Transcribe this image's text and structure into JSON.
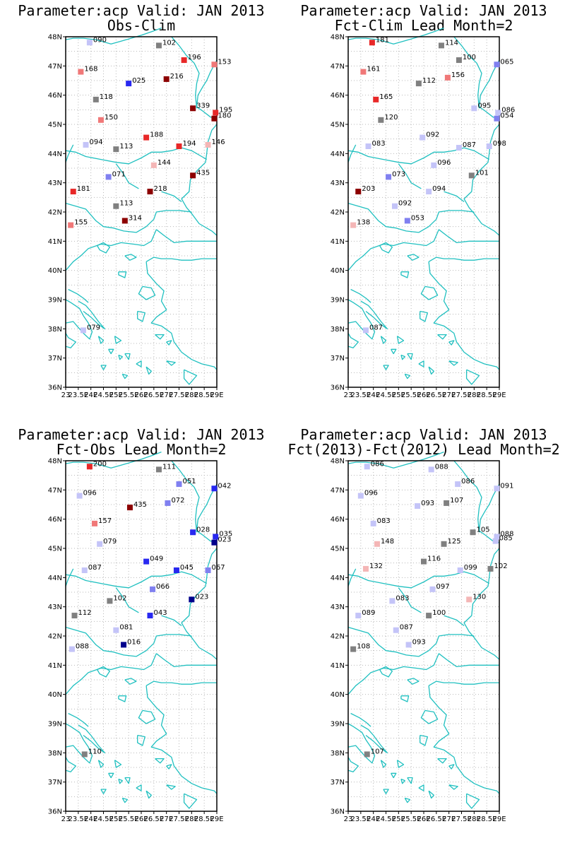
{
  "colors": {
    "coast": "#20c0c0",
    "grid": "#b8b8b8",
    "frame": "#000000",
    "neutral": "#808080",
    "pos_scale": [
      "#f4b6b6",
      "#f07878",
      "#e82828",
      "#8c0000"
    ],
    "neg_scale": [
      "#c4c4f8",
      "#8080f0",
      "#2828f0",
      "#00008c"
    ]
  },
  "axes": {
    "lon_range": [
      23,
      29
    ],
    "lat_range": [
      36,
      48
    ],
    "y_tick_labels": [
      "48N",
      "47N",
      "46N",
      "45N",
      "44N",
      "43N",
      "42N",
      "41N",
      "40N",
      "39N",
      "38N",
      "37N",
      "36N"
    ],
    "x_tick_labels": [
      "23",
      "23.5E",
      "24E",
      "24.5E",
      "25E",
      "25.5E",
      "26E",
      "26.5E",
      "27E",
      "27.5E",
      "28E",
      "28.5E",
      "29E"
    ],
    "grid": true
  },
  "panels": [
    {
      "title_line1": "Parameter:acp Valid: JAN 2013",
      "title_line2": "Obs-Clim",
      "stations": [
        {
          "lon": 23.95,
          "lat": 47.8,
          "label": "090",
          "class": "n1"
        },
        {
          "lon": 26.7,
          "lat": 47.7,
          "label": "102",
          "class": "z"
        },
        {
          "lon": 27.7,
          "lat": 47.2,
          "label": "196",
          "class": "p3"
        },
        {
          "lon": 28.9,
          "lat": 47.05,
          "label": "153",
          "class": "p2"
        },
        {
          "lon": 23.6,
          "lat": 46.8,
          "label": "168",
          "class": "p2"
        },
        {
          "lon": 25.5,
          "lat": 46.4,
          "label": "025",
          "class": "n3"
        },
        {
          "lon": 27.0,
          "lat": 46.55,
          "label": "216",
          "class": "p4"
        },
        {
          "lon": 24.2,
          "lat": 45.85,
          "label": "118",
          "class": "z"
        },
        {
          "lon": 28.05,
          "lat": 45.55,
          "label": "339",
          "class": "p4"
        },
        {
          "lon": 28.95,
          "lat": 45.4,
          "label": "195",
          "class": "p3"
        },
        {
          "lon": 28.9,
          "lat": 45.2,
          "label": "180",
          "class": "p4"
        },
        {
          "lon": 24.4,
          "lat": 45.15,
          "label": "150",
          "class": "p2"
        },
        {
          "lon": 26.2,
          "lat": 44.55,
          "label": "188",
          "class": "p3"
        },
        {
          "lon": 23.8,
          "lat": 44.3,
          "label": "094",
          "class": "n1"
        },
        {
          "lon": 25.0,
          "lat": 44.15,
          "label": "113",
          "class": "z"
        },
        {
          "lon": 27.5,
          "lat": 44.25,
          "label": "194",
          "class": "p3"
        },
        {
          "lon": 28.65,
          "lat": 44.3,
          "label": "146",
          "class": "p1"
        },
        {
          "lon": 26.5,
          "lat": 43.6,
          "label": "144",
          "class": "p1"
        },
        {
          "lon": 24.7,
          "lat": 43.2,
          "label": "071",
          "class": "n2"
        },
        {
          "lon": 28.05,
          "lat": 43.25,
          "label": "435",
          "class": "p4"
        },
        {
          "lon": 23.3,
          "lat": 42.7,
          "label": "181",
          "class": "p3"
        },
        {
          "lon": 26.35,
          "lat": 42.7,
          "label": "218",
          "class": "p4"
        },
        {
          "lon": 25.0,
          "lat": 42.2,
          "label": "113",
          "class": "z"
        },
        {
          "lon": 25.35,
          "lat": 41.7,
          "label": "314",
          "class": "p4"
        },
        {
          "lon": 23.2,
          "lat": 41.55,
          "label": "155",
          "class": "p2"
        },
        {
          "lon": 23.7,
          "lat": 37.95,
          "label": "079",
          "class": "n1"
        }
      ]
    },
    {
      "title_line1": "Parameter:acp Valid: JAN 2013",
      "title_line2": "Fct-Clim Lead Month=2",
      "stations": [
        {
          "lon": 23.95,
          "lat": 47.8,
          "label": "181",
          "class": "p3"
        },
        {
          "lon": 26.7,
          "lat": 47.7,
          "label": "114",
          "class": "z"
        },
        {
          "lon": 27.4,
          "lat": 47.2,
          "label": "100",
          "class": "z"
        },
        {
          "lon": 28.9,
          "lat": 47.05,
          "label": "065",
          "class": "n2"
        },
        {
          "lon": 23.6,
          "lat": 46.8,
          "label": "161",
          "class": "p2"
        },
        {
          "lon": 25.8,
          "lat": 46.4,
          "label": "112",
          "class": "z"
        },
        {
          "lon": 26.95,
          "lat": 46.6,
          "label": "156",
          "class": "p2"
        },
        {
          "lon": 24.1,
          "lat": 45.85,
          "label": "165",
          "class": "p3"
        },
        {
          "lon": 28.0,
          "lat": 45.55,
          "label": "095",
          "class": "n1"
        },
        {
          "lon": 28.95,
          "lat": 45.4,
          "label": "086",
          "class": "n1"
        },
        {
          "lon": 28.9,
          "lat": 45.2,
          "label": "054",
          "class": "n2"
        },
        {
          "lon": 24.3,
          "lat": 45.15,
          "label": "120",
          "class": "z"
        },
        {
          "lon": 25.95,
          "lat": 44.55,
          "label": "092",
          "class": "n1"
        },
        {
          "lon": 23.8,
          "lat": 44.25,
          "label": "083",
          "class": "n1"
        },
        {
          "lon": 27.4,
          "lat": 44.2,
          "label": "087",
          "class": "n1"
        },
        {
          "lon": 28.6,
          "lat": 44.25,
          "label": "098",
          "class": "n1"
        },
        {
          "lon": 26.4,
          "lat": 43.6,
          "label": "096",
          "class": "n1"
        },
        {
          "lon": 24.6,
          "lat": 43.2,
          "label": "073",
          "class": "n2"
        },
        {
          "lon": 27.9,
          "lat": 43.25,
          "label": "101",
          "class": "z"
        },
        {
          "lon": 23.4,
          "lat": 42.7,
          "label": "203",
          "class": "p4"
        },
        {
          "lon": 26.2,
          "lat": 42.7,
          "label": "094",
          "class": "n1"
        },
        {
          "lon": 24.85,
          "lat": 42.2,
          "label": "092",
          "class": "n1"
        },
        {
          "lon": 25.35,
          "lat": 41.7,
          "label": "053",
          "class": "n2"
        },
        {
          "lon": 23.2,
          "lat": 41.55,
          "label": "138",
          "class": "p1"
        },
        {
          "lon": 23.7,
          "lat": 37.95,
          "label": "087",
          "class": "n1"
        }
      ]
    },
    {
      "title_line1": "Parameter:acp Valid: JAN 2013",
      "title_line2": "Fct-Obs Lead Month=2",
      "stations": [
        {
          "lon": 23.95,
          "lat": 47.8,
          "label": "200",
          "class": "p3"
        },
        {
          "lon": 26.7,
          "lat": 47.7,
          "label": "111",
          "class": "z"
        },
        {
          "lon": 27.5,
          "lat": 47.2,
          "label": "051",
          "class": "n2"
        },
        {
          "lon": 28.9,
          "lat": 47.05,
          "label": "042",
          "class": "n3"
        },
        {
          "lon": 23.55,
          "lat": 46.8,
          "label": "096",
          "class": "n1"
        },
        {
          "lon": 25.55,
          "lat": 46.4,
          "label": "435",
          "class": "p4"
        },
        {
          "lon": 27.05,
          "lat": 46.55,
          "label": "072",
          "class": "n2"
        },
        {
          "lon": 24.15,
          "lat": 45.85,
          "label": "157",
          "class": "p2"
        },
        {
          "lon": 28.05,
          "lat": 45.55,
          "label": "028",
          "class": "n3"
        },
        {
          "lon": 28.95,
          "lat": 45.4,
          "label": "035",
          "class": "n3"
        },
        {
          "lon": 28.9,
          "lat": 45.2,
          "label": "023",
          "class": "n4"
        },
        {
          "lon": 24.35,
          "lat": 45.15,
          "label": "079",
          "class": "n1"
        },
        {
          "lon": 26.2,
          "lat": 44.55,
          "label": "049",
          "class": "n3"
        },
        {
          "lon": 23.75,
          "lat": 44.25,
          "label": "087",
          "class": "n1"
        },
        {
          "lon": 27.4,
          "lat": 44.25,
          "label": "045",
          "class": "n3"
        },
        {
          "lon": 28.65,
          "lat": 44.25,
          "label": "067",
          "class": "n2"
        },
        {
          "lon": 26.45,
          "lat": 43.6,
          "label": "066",
          "class": "n2"
        },
        {
          "lon": 24.75,
          "lat": 43.2,
          "label": "102",
          "class": "z"
        },
        {
          "lon": 28.0,
          "lat": 43.25,
          "label": "023",
          "class": "n4"
        },
        {
          "lon": 23.35,
          "lat": 42.7,
          "label": "112",
          "class": "z"
        },
        {
          "lon": 26.35,
          "lat": 42.7,
          "label": "043",
          "class": "n3"
        },
        {
          "lon": 25.0,
          "lat": 42.2,
          "label": "081",
          "class": "n1"
        },
        {
          "lon": 25.3,
          "lat": 41.7,
          "label": "016",
          "class": "n4"
        },
        {
          "lon": 23.25,
          "lat": 41.55,
          "label": "088",
          "class": "n1"
        },
        {
          "lon": 23.75,
          "lat": 37.95,
          "label": "110",
          "class": "z"
        }
      ]
    },
    {
      "title_line1": "Parameter:acp Valid: JAN 2013",
      "title_line2": "Fct(2013)-Fct(2012) Lead Month=2",
      "stations": [
        {
          "lon": 23.75,
          "lat": 47.8,
          "label": "086",
          "class": "n1"
        },
        {
          "lon": 26.3,
          "lat": 47.7,
          "label": "088",
          "class": "n1"
        },
        {
          "lon": 27.35,
          "lat": 47.2,
          "label": "086",
          "class": "n1"
        },
        {
          "lon": 28.9,
          "lat": 47.05,
          "label": "091",
          "class": "n1"
        },
        {
          "lon": 23.5,
          "lat": 46.8,
          "label": "096",
          "class": "n1"
        },
        {
          "lon": 25.75,
          "lat": 46.45,
          "label": "093",
          "class": "n1"
        },
        {
          "lon": 26.9,
          "lat": 46.55,
          "label": "107",
          "class": "z"
        },
        {
          "lon": 24.0,
          "lat": 45.85,
          "label": "083",
          "class": "n1"
        },
        {
          "lon": 27.95,
          "lat": 45.55,
          "label": "105",
          "class": "z"
        },
        {
          "lon": 28.9,
          "lat": 45.4,
          "label": "088",
          "class": "n1"
        },
        {
          "lon": 28.85,
          "lat": 45.25,
          "label": "085",
          "class": "n1"
        },
        {
          "lon": 24.15,
          "lat": 45.15,
          "label": "148",
          "class": "p1"
        },
        {
          "lon": 26.8,
          "lat": 45.15,
          "label": "125",
          "class": "z"
        },
        {
          "lon": 26.0,
          "lat": 44.55,
          "label": "116",
          "class": "z"
        },
        {
          "lon": 23.7,
          "lat": 44.3,
          "label": "132",
          "class": "p1"
        },
        {
          "lon": 27.45,
          "lat": 44.25,
          "label": "099",
          "class": "n1"
        },
        {
          "lon": 28.65,
          "lat": 44.3,
          "label": "102",
          "class": "z"
        },
        {
          "lon": 26.35,
          "lat": 43.6,
          "label": "097",
          "class": "n1"
        },
        {
          "lon": 24.75,
          "lat": 43.2,
          "label": "083",
          "class": "n1"
        },
        {
          "lon": 27.8,
          "lat": 43.25,
          "label": "130",
          "class": "p1"
        },
        {
          "lon": 23.4,
          "lat": 42.7,
          "label": "089",
          "class": "n1"
        },
        {
          "lon": 26.2,
          "lat": 42.7,
          "label": "100",
          "class": "z"
        },
        {
          "lon": 24.9,
          "lat": 42.2,
          "label": "087",
          "class": "n1"
        },
        {
          "lon": 25.4,
          "lat": 41.7,
          "label": "093",
          "class": "n1"
        },
        {
          "lon": 23.2,
          "lat": 41.55,
          "label": "108",
          "class": "z"
        },
        {
          "lon": 23.75,
          "lat": 37.95,
          "label": "107",
          "class": "z"
        }
      ]
    }
  ]
}
